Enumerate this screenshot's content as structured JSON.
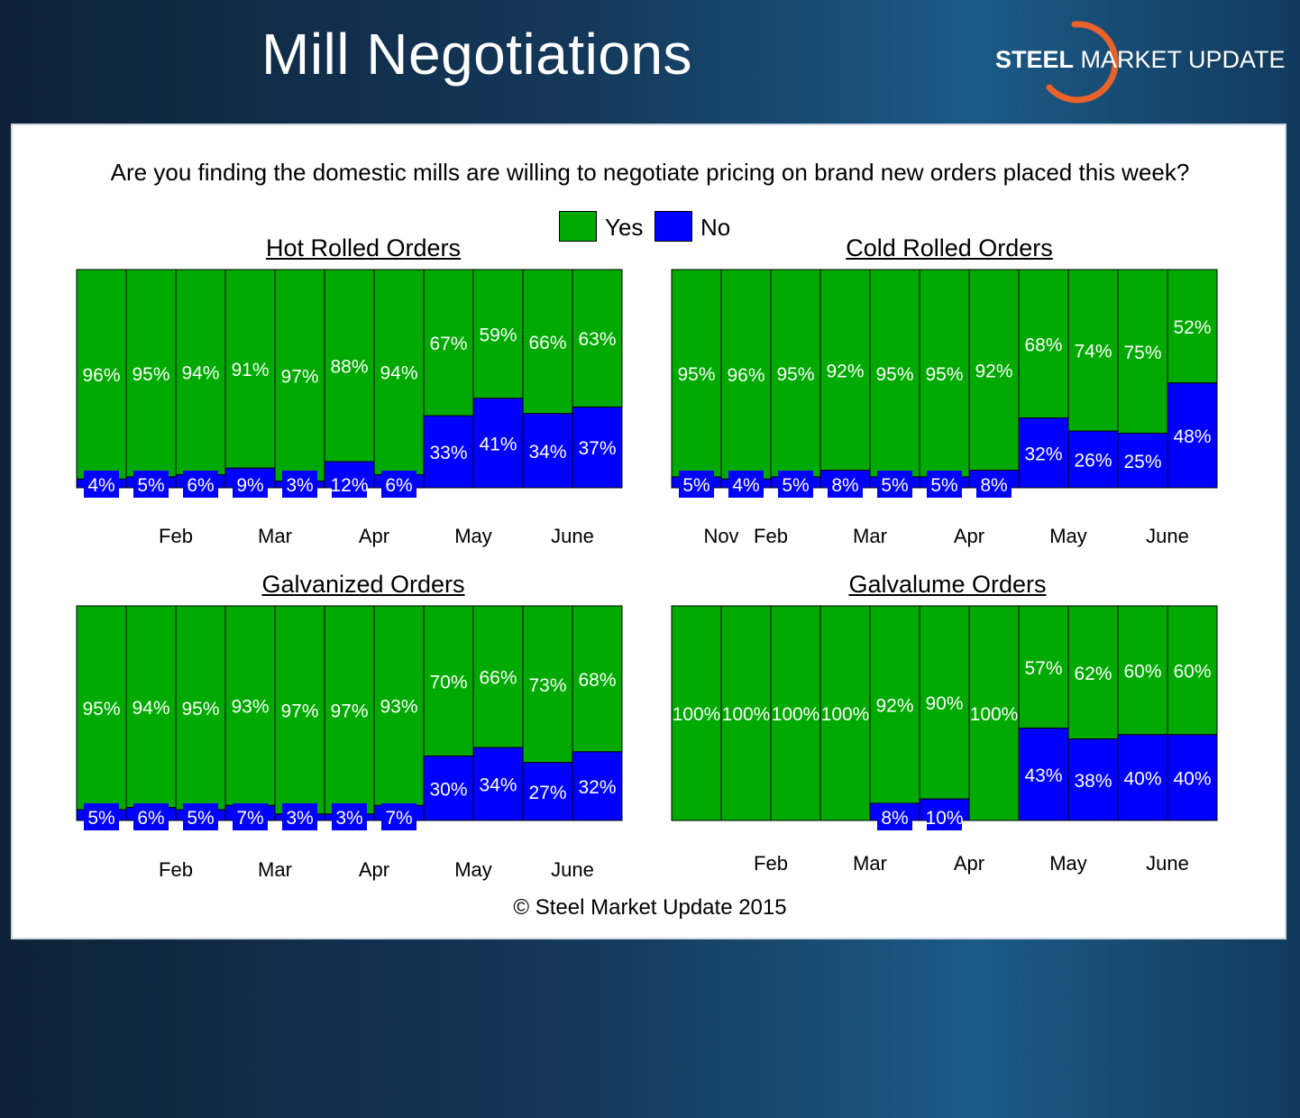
{
  "header": {
    "title": "Mill Negotiations",
    "logo_bold": "STEEL",
    "logo_rest": " MARKET UPDATE"
  },
  "question": "Are you finding the domestic mills are willing to negotiate pricing on brand new orders placed this week?",
  "legend": {
    "yes": "Yes",
    "no": "No"
  },
  "colors": {
    "yes": "#00aa00",
    "no": "#0000ff",
    "logo_arc": "#e8622a"
  },
  "copyright": "© Steel Market Update 2015",
  "chart_data": [
    {
      "type": "bar",
      "title": "Hot Rolled Orders",
      "stacked": true,
      "categories": [
        "",
        "",
        "",
        "",
        "",
        "",
        "",
        "",
        "",
        "",
        ""
      ],
      "month_labels": [
        {
          "label": "Feb",
          "at": 1.5
        },
        {
          "label": "Mar",
          "at": 3.5
        },
        {
          "label": "Apr",
          "at": 5.5
        },
        {
          "label": "May",
          "at": 7.5
        },
        {
          "label": "June",
          "at": 9.5
        }
      ],
      "series": [
        {
          "name": "Yes",
          "values": [
            96,
            95,
            94,
            91,
            97,
            88,
            94,
            67,
            59,
            66,
            63
          ]
        },
        {
          "name": "No",
          "values": [
            4,
            5,
            6,
            9,
            3,
            12,
            6,
            33,
            41,
            34,
            37
          ]
        }
      ],
      "ylim": [
        0,
        100
      ]
    },
    {
      "type": "bar",
      "title": "Cold Rolled Orders",
      "stacked": true,
      "categories": [
        "",
        "",
        "",
        "",
        "",
        "",
        "",
        "",
        "",
        "",
        ""
      ],
      "month_labels": [
        {
          "label": "Nov",
          "at": 0.5
        },
        {
          "label": "Feb",
          "at": 1.5
        },
        {
          "label": "Mar",
          "at": 3.5
        },
        {
          "label": "Apr",
          "at": 5.5
        },
        {
          "label": "May",
          "at": 7.5
        },
        {
          "label": "June",
          "at": 9.5
        }
      ],
      "series": [
        {
          "name": "Yes",
          "values": [
            95,
            96,
            95,
            92,
            95,
            95,
            92,
            68,
            74,
            75,
            52
          ]
        },
        {
          "name": "No",
          "values": [
            5,
            4,
            5,
            8,
            5,
            5,
            8,
            32,
            26,
            25,
            48
          ]
        }
      ],
      "ylim": [
        0,
        100
      ]
    },
    {
      "type": "bar",
      "title": "Galvanized Orders",
      "stacked": true,
      "categories": [
        "",
        "",
        "",
        "",
        "",
        "",
        "",
        "",
        "",
        "",
        ""
      ],
      "month_labels": [
        {
          "label": "Feb",
          "at": 1.5
        },
        {
          "label": "Mar",
          "at": 3.5
        },
        {
          "label": "Apr",
          "at": 5.5
        },
        {
          "label": "May",
          "at": 7.5
        },
        {
          "label": "June",
          "at": 9.5
        }
      ],
      "series": [
        {
          "name": "Yes",
          "values": [
            95,
            94,
            95,
            93,
            97,
            97,
            93,
            70,
            66,
            73,
            68
          ]
        },
        {
          "name": "No",
          "values": [
            5,
            6,
            5,
            7,
            3,
            3,
            7,
            30,
            34,
            27,
            32
          ]
        }
      ],
      "ylim": [
        0,
        100
      ]
    },
    {
      "type": "bar",
      "title": "Galvalume Orders",
      "stacked": true,
      "categories": [
        "",
        "",
        "",
        "",
        "",
        "",
        "",
        "",
        "",
        "",
        ""
      ],
      "month_labels": [
        {
          "label": "Feb",
          "at": 1.5
        },
        {
          "label": "Mar",
          "at": 3.5
        },
        {
          "label": "Apr",
          "at": 5.5
        },
        {
          "label": "May",
          "at": 7.5
        },
        {
          "label": "June",
          "at": 9.5
        }
      ],
      "series": [
        {
          "name": "Yes",
          "values": [
            100,
            100,
            100,
            100,
            92,
            90,
            100,
            57,
            62,
            60,
            60
          ]
        },
        {
          "name": "No",
          "values": [
            0,
            0,
            0,
            0,
            8,
            10,
            0,
            43,
            38,
            40,
            40
          ]
        }
      ],
      "ylim": [
        0,
        100
      ]
    }
  ]
}
